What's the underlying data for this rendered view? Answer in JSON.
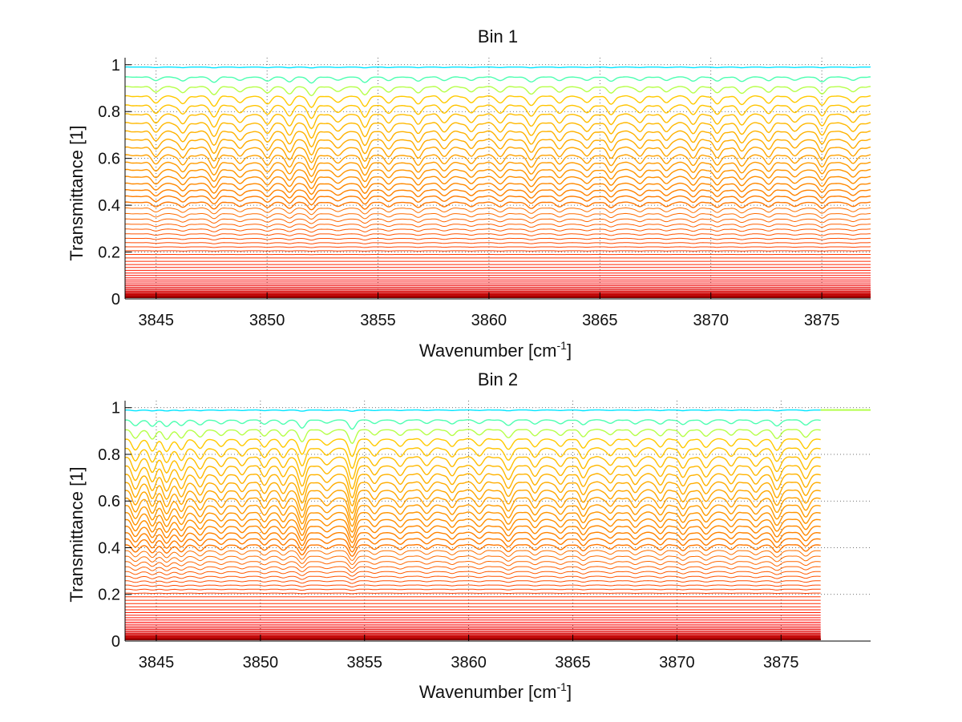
{
  "chart_data": [
    {
      "type": "line",
      "title": "Bin 1",
      "xlabel": "Wavenumber [cm",
      "xlabel_sup": "-1",
      "xlabel_end": "]",
      "ylabel": "Transmittance [1]",
      "xlim": [
        3843.6,
        3877.2
      ],
      "ylim": [
        0,
        1.03
      ],
      "xticks": [
        3845,
        3850,
        3855,
        3860,
        3865,
        3870,
        3875
      ],
      "xtick_labels": [
        "3845",
        "3850",
        "3855",
        "3860",
        "3865",
        "3870",
        "3875"
      ],
      "yticks": [
        0,
        0.2,
        0.4,
        0.6,
        0.8,
        1
      ],
      "ytick_labels": [
        "0",
        "0.2",
        "0.4",
        "0.6",
        "0.8",
        "1"
      ],
      "grid": "dotted",
      "data_x_range": [
        3843.6,
        3877.2
      ],
      "colormap": "jet",
      "series_count": 60,
      "mean_level_top": 0.99,
      "mean_level_bottom": 0.005,
      "absorption_lines": [
        {
          "x": 3845.0,
          "depth": 0.6
        },
        {
          "x": 3846.2,
          "depth": 0.7
        },
        {
          "x": 3847.6,
          "depth": 0.9
        },
        {
          "x": 3848.8,
          "depth": 0.6
        },
        {
          "x": 3850.0,
          "depth": 0.7
        },
        {
          "x": 3851.0,
          "depth": 0.8
        },
        {
          "x": 3852.0,
          "depth": 1.0
        },
        {
          "x": 3853.2,
          "depth": 0.6
        },
        {
          "x": 3854.4,
          "depth": 0.9
        },
        {
          "x": 3855.5,
          "depth": 0.6
        },
        {
          "x": 3856.8,
          "depth": 0.7
        },
        {
          "x": 3858.0,
          "depth": 0.6
        },
        {
          "x": 3859.2,
          "depth": 0.6
        },
        {
          "x": 3860.5,
          "depth": 0.6
        },
        {
          "x": 3861.9,
          "depth": 0.9
        },
        {
          "x": 3863.2,
          "depth": 0.6
        },
        {
          "x": 3864.4,
          "depth": 0.6
        },
        {
          "x": 3865.5,
          "depth": 0.7
        },
        {
          "x": 3866.8,
          "depth": 0.6
        },
        {
          "x": 3868.0,
          "depth": 0.6
        },
        {
          "x": 3869.2,
          "depth": 0.7
        },
        {
          "x": 3870.3,
          "depth": 0.7
        },
        {
          "x": 3871.4,
          "depth": 0.8
        },
        {
          "x": 3872.6,
          "depth": 0.6
        },
        {
          "x": 3873.8,
          "depth": 0.6
        },
        {
          "x": 3875.0,
          "depth": 0.8
        },
        {
          "x": 3876.4,
          "depth": 0.6
        }
      ]
    },
    {
      "type": "line",
      "title": "Bin 2",
      "xlabel": "Wavenumber [cm",
      "xlabel_sup": "-1",
      "xlabel_end": "]",
      "ylabel": "Transmittance [1]",
      "xlim": [
        3843.5,
        3879.3
      ],
      "ylim": [
        0,
        1.03
      ],
      "xticks": [
        3845,
        3850,
        3855,
        3860,
        3865,
        3870,
        3875
      ],
      "xtick_labels": [
        "3845",
        "3850",
        "3855",
        "3860",
        "3865",
        "3870",
        "3875"
      ],
      "yticks": [
        0,
        0.2,
        0.4,
        0.6,
        0.8,
        1
      ],
      "ytick_labels": [
        "0",
        "0.2",
        "0.4",
        "0.6",
        "0.8",
        "1"
      ],
      "grid": "dotted",
      "data_x_range": [
        3843.5,
        3876.9
      ],
      "flat_tail_range": [
        3876.9,
        3879.3
      ],
      "flat_tail_value": 0.99,
      "colormap": "jet",
      "series_count": 60,
      "mean_level_top": 0.99,
      "mean_level_bottom": 0.005,
      "absorption_lines": [
        {
          "x": 3844.0,
          "depth": 1.0
        },
        {
          "x": 3844.8,
          "depth": 1.1
        },
        {
          "x": 3845.5,
          "depth": 1.2
        },
        {
          "x": 3846.2,
          "depth": 1.0
        },
        {
          "x": 3847.1,
          "depth": 0.9
        },
        {
          "x": 3848.1,
          "depth": 0.7
        },
        {
          "x": 3849.1,
          "depth": 0.6
        },
        {
          "x": 3850.2,
          "depth": 0.7
        },
        {
          "x": 3851.1,
          "depth": 0.7
        },
        {
          "x": 3852.0,
          "depth": 1.4
        },
        {
          "x": 3853.2,
          "depth": 0.6
        },
        {
          "x": 3854.4,
          "depth": 1.6
        },
        {
          "x": 3855.5,
          "depth": 0.6
        },
        {
          "x": 3856.7,
          "depth": 0.7
        },
        {
          "x": 3858.0,
          "depth": 0.6
        },
        {
          "x": 3859.2,
          "depth": 0.7
        },
        {
          "x": 3860.5,
          "depth": 0.6
        },
        {
          "x": 3861.9,
          "depth": 1.0
        },
        {
          "x": 3863.2,
          "depth": 0.7
        },
        {
          "x": 3864.4,
          "depth": 0.7
        },
        {
          "x": 3865.5,
          "depth": 0.8
        },
        {
          "x": 3866.8,
          "depth": 0.6
        },
        {
          "x": 3868.0,
          "depth": 0.7
        },
        {
          "x": 3869.2,
          "depth": 0.7
        },
        {
          "x": 3870.3,
          "depth": 0.8
        },
        {
          "x": 3871.4,
          "depth": 0.8
        },
        {
          "x": 3872.6,
          "depth": 0.6
        },
        {
          "x": 3873.8,
          "depth": 0.7
        },
        {
          "x": 3874.8,
          "depth": 1.1
        },
        {
          "x": 3876.2,
          "depth": 0.9
        }
      ]
    }
  ]
}
